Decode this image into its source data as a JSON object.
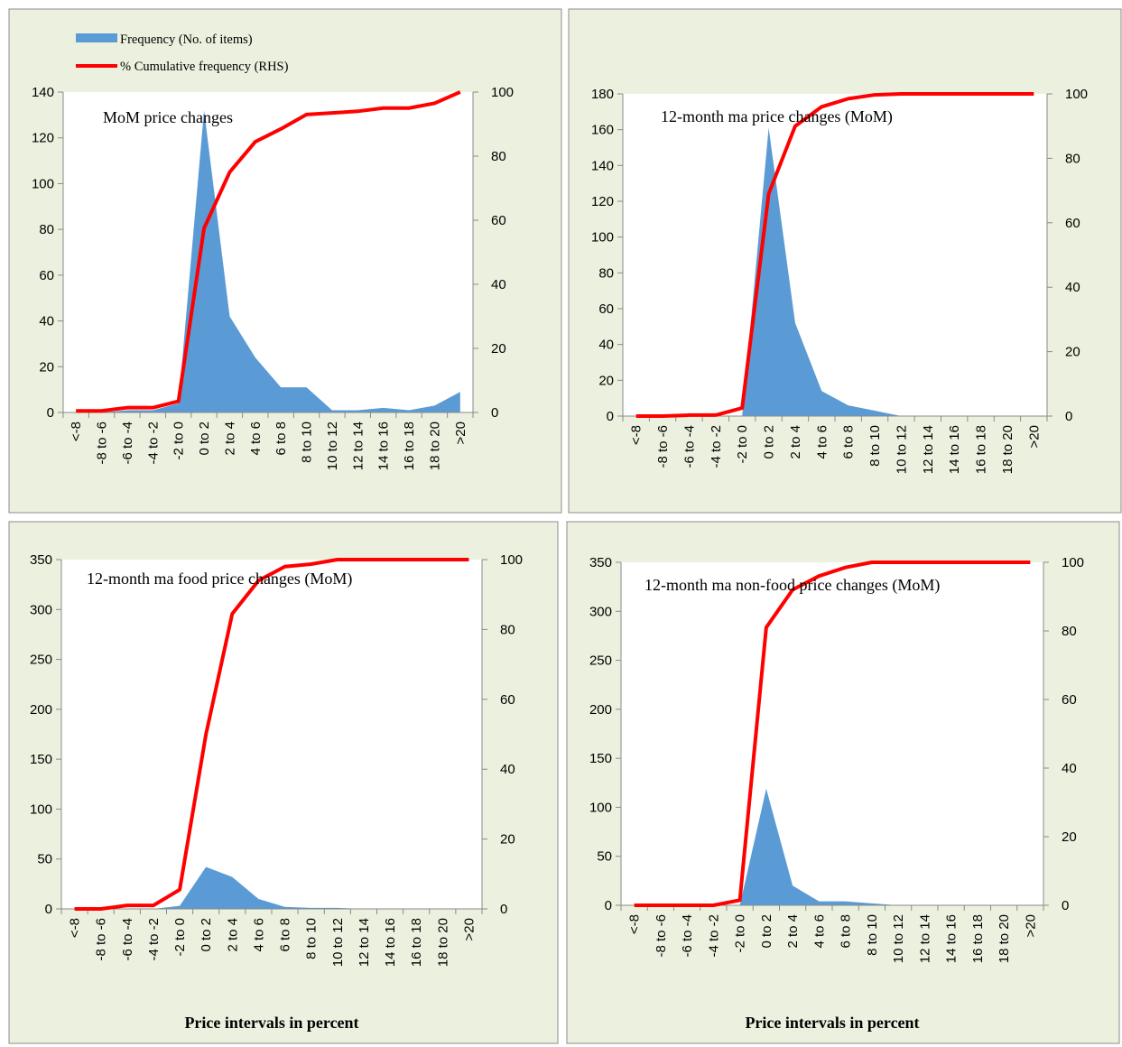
{
  "legend": {
    "frequency_label": "Frequency (No. of items)",
    "cumulative_label": "% Cumulative frequency (RHS)"
  },
  "colors": {
    "background": "#ebf1de",
    "area": "#5b9bd5",
    "line": "#ff0000"
  },
  "categories": [
    "<-8",
    "-8 to -6",
    "-6 to -4",
    "-4 to -2",
    "-2 to 0",
    "0 to 2",
    "2 to 4",
    "4 to 6",
    "6 to 8",
    "8 to 10",
    "10 to 12",
    "12 to 14",
    "14 to 16",
    "16 to 18",
    "18 to 20",
    ">20"
  ],
  "chart_data": [
    {
      "type": "area",
      "title": "MoM price changes",
      "xlabel": "",
      "ylim_left": [
        0,
        140
      ],
      "ylim_right": [
        0,
        100
      ],
      "yticks_left": [
        0,
        20,
        40,
        60,
        80,
        100,
        120,
        140
      ],
      "yticks_right": [
        0,
        20,
        40,
        60,
        80,
        100
      ],
      "series": [
        {
          "name": "Frequency (No. of items)",
          "axis": "left",
          "values": [
            0,
            0,
            1,
            1,
            4,
            132,
            42,
            24,
            11,
            11,
            1,
            1,
            2,
            1,
            3,
            9
          ]
        },
        {
          "name": "% Cumulative frequency (RHS)",
          "axis": "right",
          "values": [
            0.5,
            0.5,
            1.5,
            1.5,
            3.5,
            57.5,
            75,
            84.5,
            88.5,
            93,
            93.5,
            94,
            95,
            95,
            96.5,
            100
          ]
        }
      ]
    },
    {
      "type": "area",
      "title": "12-month  ma  price changes (MoM)",
      "xlabel": "",
      "ylim_left": [
        0,
        180
      ],
      "ylim_right": [
        0,
        100
      ],
      "yticks_left": [
        0,
        20,
        40,
        60,
        80,
        100,
        120,
        140,
        160,
        180
      ],
      "yticks_right": [
        0,
        20,
        40,
        60,
        80,
        100
      ],
      "series": [
        {
          "name": "Frequency (No. of items)",
          "axis": "left",
          "values": [
            0,
            0,
            0,
            0,
            0,
            161,
            52,
            14,
            6,
            3,
            0,
            0,
            0,
            0,
            0,
            0
          ]
        },
        {
          "name": "% Cumulative frequency (RHS)",
          "axis": "right",
          "values": [
            0,
            0,
            0.3,
            0.3,
            2.5,
            69,
            90,
            96,
            98.5,
            99.7,
            100,
            100,
            100,
            100,
            100,
            100
          ]
        }
      ]
    },
    {
      "type": "area",
      "title": "12-month  ma  food price changes (MoM)",
      "xlabel": "Price intervals  in percent",
      "ylim_left": [
        0,
        350
      ],
      "ylim_right": [
        0,
        100
      ],
      "yticks_left": [
        0,
        50,
        100,
        150,
        200,
        250,
        300,
        350
      ],
      "yticks_right": [
        0,
        20,
        40,
        60,
        80,
        100
      ],
      "series": [
        {
          "name": "Frequency (No. of items)",
          "axis": "left",
          "values": [
            0,
            0,
            0,
            0,
            3,
            42,
            32,
            10,
            2,
            1,
            1,
            0,
            0,
            0,
            0,
            0
          ]
        },
        {
          "name": "% Cumulative frequency (RHS)",
          "axis": "right",
          "values": [
            0,
            0,
            1,
            1,
            5.5,
            50,
            84.5,
            94,
            98,
            98.7,
            100,
            100,
            100,
            100,
            100,
            100
          ]
        }
      ]
    },
    {
      "type": "area",
      "title": "12-month  ma  non-food price changes (MoM)",
      "xlabel": "Price intervals  in percent",
      "ylim_left": [
        0,
        350
      ],
      "ylim_right": [
        0,
        100
      ],
      "yticks_left": [
        0,
        50,
        100,
        150,
        200,
        250,
        300,
        350
      ],
      "yticks_right": [
        0,
        20,
        40,
        60,
        80,
        100
      ],
      "series": [
        {
          "name": "Frequency (No. of items)",
          "axis": "left",
          "values": [
            0,
            0,
            0,
            0,
            0,
            119,
            20,
            4,
            4,
            2,
            0,
            0,
            0,
            0,
            0,
            0
          ]
        },
        {
          "name": "% Cumulative frequency (RHS)",
          "axis": "right",
          "values": [
            0,
            0,
            0,
            0,
            1.5,
            81,
            92,
            96,
            98.5,
            100,
            100,
            100,
            100,
            100,
            100,
            100
          ]
        }
      ]
    }
  ]
}
